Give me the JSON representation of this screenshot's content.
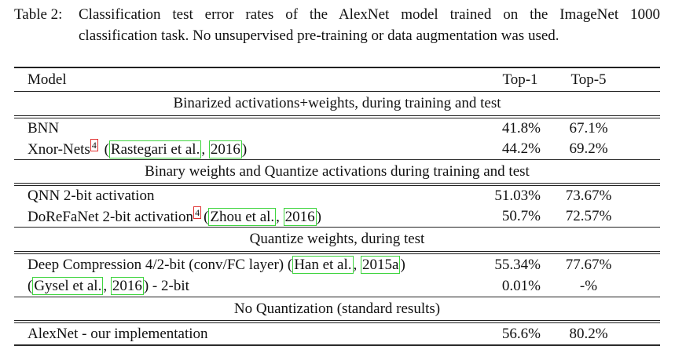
{
  "caption": {
    "label": "Table 2:",
    "lines": [
      "Classification test error rates of the AlexNet model trained on the ImageNet 1000",
      "classification task. No unsupervised pre-training or data augmentation was used."
    ]
  },
  "table": {
    "header": [
      "Model",
      "Top-1",
      "Top-5"
    ],
    "sections": [
      {
        "title": "Binarized activations+weights, during training and test",
        "rows": [
          {
            "model": [
              {
                "text": "BNN"
              }
            ],
            "top1": "41.8%",
            "top5": "67.1%"
          },
          {
            "model": [
              {
                "text": "Xnor-Nets"
              },
              {
                "footnote": "4"
              },
              {
                "text": " ("
              },
              {
                "cite": "Rastegari et al."
              },
              {
                "text": ", "
              },
              {
                "cite": "2016"
              },
              {
                "text": ")"
              }
            ],
            "top1": "44.2%",
            "top5": "69.2%"
          }
        ]
      },
      {
        "title": "Binary weights and Quantize activations during training and test",
        "rows": [
          {
            "model": [
              {
                "text": "QNN 2-bit activation"
              }
            ],
            "top1": "51.03%",
            "top5": "73.67%"
          },
          {
            "model": [
              {
                "text": "DoReFaNet 2-bit activation"
              },
              {
                "footnote": "4"
              },
              {
                "text": "("
              },
              {
                "cite": "Zhou et al."
              },
              {
                "text": ", "
              },
              {
                "cite": "2016"
              },
              {
                "text": ")"
              }
            ],
            "top1": "50.7%",
            "top5": "72.57%"
          }
        ]
      },
      {
        "title": "Quantize weights, during test",
        "rows": [
          {
            "model": [
              {
                "text": "Deep Compression 4/2-bit (conv/FC layer) ("
              },
              {
                "cite": "Han et al."
              },
              {
                "text": ", "
              },
              {
                "cite": "2015a"
              },
              {
                "text": ")"
              }
            ],
            "top1": "55.34%",
            "top5": "77.67%"
          },
          {
            "model": [
              {
                "text": "("
              },
              {
                "cite": "Gysel et al."
              },
              {
                "text": ", "
              },
              {
                "cite": "2016"
              },
              {
                "text": ") - 2-bit"
              }
            ],
            "top1": "0.01%",
            "top5": "-%"
          }
        ]
      },
      {
        "title": "No Quantization (standard results)",
        "rows": [
          {
            "model": [
              {
                "text": "AlexNet - our implementation"
              }
            ],
            "top1": "56.6%",
            "top5": "80.2%"
          }
        ]
      }
    ]
  }
}
